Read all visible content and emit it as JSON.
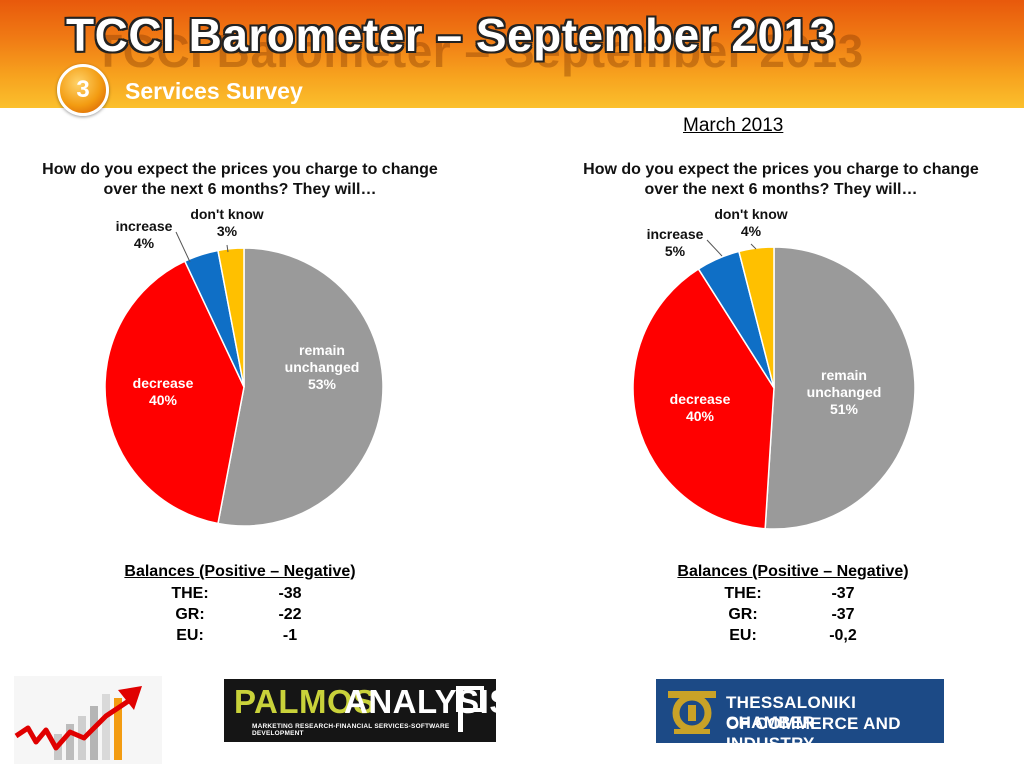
{
  "header": {
    "title": "TCCI Barometer – September 2013",
    "section_number": "3",
    "section_title": "Services Survey"
  },
  "comparison_period": "March 2013",
  "chart_data": [
    {
      "type": "pie",
      "title": "How do you expect the prices you charge to change over the next 6 months? They will…",
      "slices": [
        {
          "label": "remain unchanged",
          "value": 53,
          "display": "53%",
          "color": "#9a9a9a"
        },
        {
          "label": "decrease",
          "value": 40,
          "display": "40%",
          "color": "#ff0000"
        },
        {
          "label": "increase",
          "value": 4,
          "display": "4%",
          "color": "#0f6fc6"
        },
        {
          "label": "don't know",
          "value": 3,
          "display": "3%",
          "color": "#ffc000"
        }
      ],
      "balances": {
        "heading": "Balances (Positive – Negative)",
        "rows": [
          {
            "label": "THE:",
            "value": "-38"
          },
          {
            "label": "GR:",
            "value": "-22"
          },
          {
            "label": "EU:",
            "value": "-1"
          }
        ]
      }
    },
    {
      "type": "pie",
      "title": "How do you expect the prices you charge to change over the next 6 months? They will…",
      "slices": [
        {
          "label": "remain unchanged",
          "value": 51,
          "display": "51%",
          "color": "#9a9a9a"
        },
        {
          "label": "decrease",
          "value": 40,
          "display": "40%",
          "color": "#ff0000"
        },
        {
          "label": "increase",
          "value": 5,
          "display": "5%",
          "color": "#0f6fc6"
        },
        {
          "label": "don't know",
          "value": 4,
          "display": "4%",
          "color": "#ffc000"
        }
      ],
      "balances": {
        "heading": "Balances (Positive – Negative)",
        "rows": [
          {
            "label": "THE:",
            "value": "-37"
          },
          {
            "label": "GR:",
            "value": "-37"
          },
          {
            "label": "EU:",
            "value": "-0,2"
          }
        ]
      }
    }
  ],
  "logos": {
    "palmos_part1": "PALMOS",
    "palmos_part2": "ANALYSIS",
    "palmos_tagline": "MARKETING RESEARCH-FINANCIAL SERVICES-SOFTWARE DEVELOPMENT",
    "tcci_line1": "THESSALONIKI CHAMBER",
    "tcci_line2": "OF COMMERCE AND INDUSTRY"
  }
}
